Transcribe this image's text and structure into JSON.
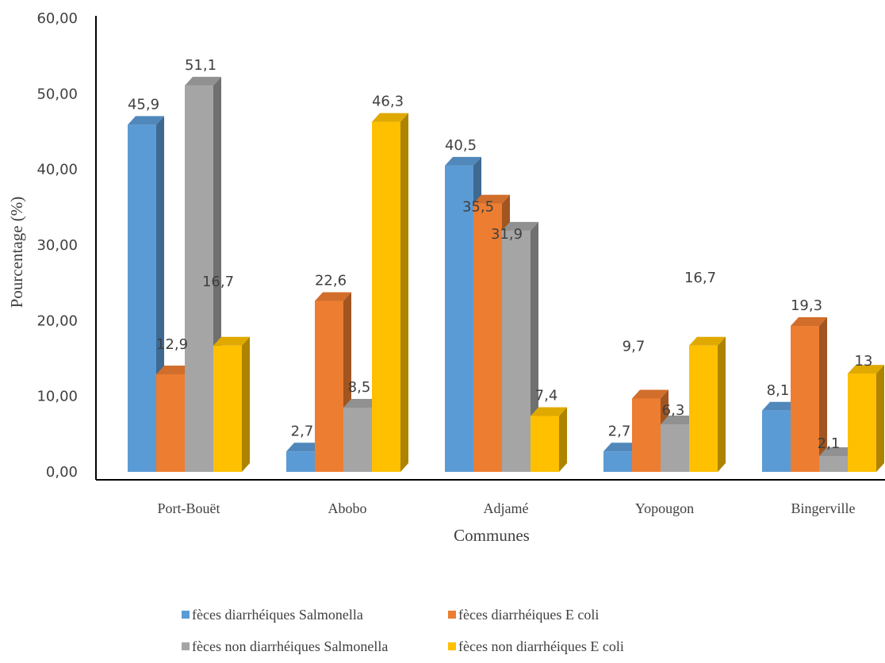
{
  "chart_data": {
    "type": "bar",
    "title": "",
    "xlabel": "Communes",
    "ylabel": "Pourcentage (%)",
    "ylim": [
      0,
      60
    ],
    "yticks": [
      "0,00",
      "10,00",
      "20,00",
      "30,00",
      "40,00",
      "50,00",
      "60,00"
    ],
    "grid": false,
    "legend_position": "bottom",
    "categories": [
      "Port-Bouët",
      "Abobo",
      "Adjamé",
      "Yopougon",
      "Bingerville"
    ],
    "series": [
      {
        "name": "fèces diarrhéiques  Salmonella",
        "color": "#5B9BD5",
        "values": [
          45.9,
          2.7,
          40.5,
          2.7,
          8.1
        ],
        "labels": [
          "45,9",
          "2,7",
          "40,5",
          "2,7",
          "8,1"
        ]
      },
      {
        "name": "fèces diarrhéiques  E coli",
        "color": "#ED7D31",
        "values": [
          12.9,
          22.6,
          35.5,
          9.7,
          19.3
        ],
        "labels": [
          "12,9",
          "22,6",
          "35,5",
          "9,7",
          "19,3"
        ]
      },
      {
        "name": "fèces non diarrhéiques Salmonella",
        "color": "#A5A5A5",
        "values": [
          51.1,
          8.5,
          31.9,
          6.3,
          2.1
        ],
        "labels": [
          "51,1",
          "8,5",
          "31,9",
          "6,3",
          "2,1"
        ]
      },
      {
        "name": "fèces non diarrhéiques E coli",
        "color": "#FFC000",
        "values": [
          16.7,
          46.3,
          7.4,
          16.7,
          13
        ],
        "labels": [
          "16,7",
          "46,3",
          "7,4",
          "16,7",
          "13"
        ]
      }
    ]
  }
}
